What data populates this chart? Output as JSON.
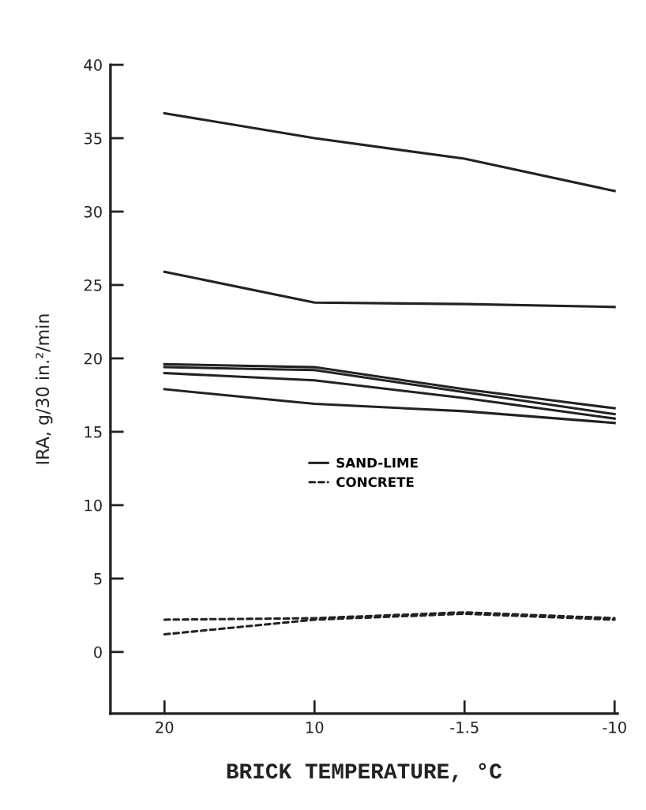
{
  "chart_data": {
    "type": "line",
    "xlabel": "BRICK TEMPERATURE, °C",
    "ylabel": "IRA, g/30 in.²/min",
    "categories": [
      "20",
      "10",
      "-1.5",
      "-10"
    ],
    "ylim": [
      -4.2,
      40
    ],
    "yticks": [
      0,
      5,
      10,
      15,
      20,
      25,
      30,
      35,
      40
    ],
    "legend": "center",
    "series": [
      {
        "name": "SAND-LIME",
        "color": "#222222",
        "line_style": "solid",
        "values": [
          36.7,
          35.0,
          33.6,
          31.4
        ]
      },
      {
        "color": "#222222",
        "line_style": "solid",
        "values": [
          25.9,
          23.8,
          23.7,
          23.5
        ]
      },
      {
        "color": "#222222",
        "line_style": "solid",
        "values": [
          19.6,
          19.4,
          17.9,
          16.6
        ]
      },
      {
        "color": "#222222",
        "line_style": "solid",
        "values": [
          19.4,
          19.2,
          17.7,
          16.2
        ]
      },
      {
        "color": "#222222",
        "line_style": "solid",
        "values": [
          19.0,
          18.5,
          17.3,
          15.9
        ]
      },
      {
        "color": "#222222",
        "line_style": "solid",
        "values": [
          17.9,
          16.9,
          16.4,
          15.6
        ]
      },
      {
        "name": "CONCRETE",
        "color": "#222222",
        "line_style": "dashed",
        "values": [
          2.2,
          2.3,
          2.7,
          2.3
        ]
      },
      {
        "color": "#222222",
        "line_style": "dashed",
        "values": [
          1.2,
          2.2,
          2.6,
          2.2
        ]
      }
    ]
  }
}
